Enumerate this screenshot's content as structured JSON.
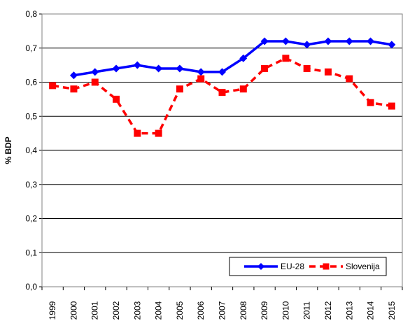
{
  "chart_data": {
    "type": "line",
    "title": "",
    "xlabel": "",
    "ylabel": "% BDP",
    "categories": [
      "1999",
      "2000",
      "2001",
      "2002",
      "2003",
      "2004",
      "2005",
      "2006",
      "2007",
      "2008",
      "2009",
      "2010",
      "2011",
      "2012",
      "2013",
      "2014",
      "2015"
    ],
    "ylim": [
      0,
      0.8
    ],
    "yticks": [
      0,
      0.1,
      0.2,
      0.3,
      0.4,
      0.5,
      0.6,
      0.7,
      0.8
    ],
    "ytick_labels": [
      "0,0",
      "0,1",
      "0,2",
      "0,3",
      "0,4",
      "0,5",
      "0,6",
      "0,7",
      "0,8"
    ],
    "grid": true,
    "legend_position": "bottom-right",
    "series": [
      {
        "name": "EU-28",
        "color": "#0000FF",
        "marker": "diamond",
        "line_style": "solid",
        "values": [
          null,
          0.62,
          0.63,
          0.64,
          0.65,
          0.64,
          0.64,
          0.63,
          0.63,
          0.67,
          0.72,
          0.72,
          0.71,
          0.72,
          0.72,
          0.72,
          0.71
        ]
      },
      {
        "name": "Slovenija",
        "color": "#FF0000",
        "marker": "square",
        "line_style": "dashed",
        "values": [
          0.59,
          0.58,
          0.6,
          0.55,
          0.45,
          0.45,
          0.58,
          0.61,
          0.57,
          0.58,
          0.64,
          0.67,
          0.64,
          0.63,
          0.61,
          0.54,
          0.53
        ]
      }
    ]
  }
}
